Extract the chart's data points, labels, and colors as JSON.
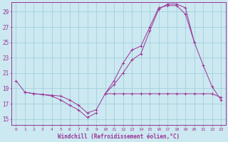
{
  "xlabel": "Windchill (Refroidissement éolien,°C)",
  "background_color": "#cce8f0",
  "grid_color": "#99ccdd",
  "line_color": "#993399",
  "spine_color": "#993399",
  "x_labels": [
    "0",
    "1",
    "2",
    "3",
    "4",
    "5",
    "6",
    "7",
    "8",
    "9",
    "10",
    "11",
    "12",
    "13",
    "14",
    "15",
    "16",
    "17",
    "18",
    "19",
    "20",
    "21",
    "22",
    "23"
  ],
  "y_ticks": [
    15,
    17,
    19,
    21,
    23,
    25,
    27,
    29
  ],
  "ylim": [
    14.2,
    30.2
  ],
  "xlim": [
    -0.5,
    23.5
  ],
  "series": [
    [
      20.0,
      18.5,
      18.3,
      18.2,
      18.1,
      18.0,
      17.5,
      16.8,
      15.8,
      16.2,
      18.3,
      18.3,
      18.3,
      18.3,
      18.3,
      18.3,
      18.3,
      18.3,
      18.3,
      18.3,
      18.3,
      18.3,
      18.3,
      17.8
    ],
    [
      null,
      18.5,
      18.3,
      18.2,
      18.0,
      17.5,
      16.8,
      16.2,
      15.2,
      15.8,
      null,
      null,
      null,
      null,
      null,
      null,
      null,
      null,
      null,
      null,
      null,
      null,
      null,
      null
    ],
    [
      null,
      null,
      null,
      null,
      null,
      null,
      null,
      null,
      null,
      null,
      18.3,
      20.0,
      22.3,
      24.0,
      24.5,
      27.0,
      29.5,
      29.8,
      29.8,
      28.7,
      25.0,
      22.0,
      19.2,
      17.5
    ],
    [
      null,
      null,
      null,
      null,
      null,
      null,
      null,
      null,
      null,
      null,
      18.3,
      19.5,
      21.0,
      22.7,
      23.5,
      26.5,
      29.3,
      30.0,
      30.0,
      29.5,
      25.0,
      null,
      null,
      null
    ]
  ]
}
